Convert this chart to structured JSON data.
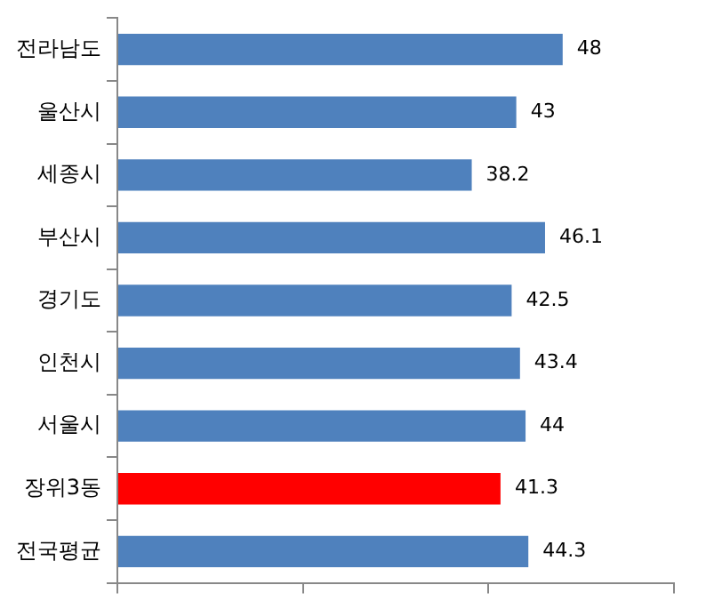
{
  "chart_data": {
    "type": "bar",
    "orientation": "horizontal",
    "categories": [
      "전라남도",
      "울산시",
      "세종시",
      "부산시",
      "경기도",
      "인천시",
      "서울시",
      "장위3동",
      "전국평균"
    ],
    "values": [
      48,
      43,
      38.2,
      46.1,
      42.5,
      43.4,
      44,
      41.3,
      44.3
    ],
    "colors": [
      "#4f81bd",
      "#4f81bd",
      "#4f81bd",
      "#4f81bd",
      "#4f81bd",
      "#4f81bd",
      "#4f81bd",
      "#ff0000",
      "#4f81bd"
    ],
    "tick_labels": "y",
    "data_labels": true
  }
}
